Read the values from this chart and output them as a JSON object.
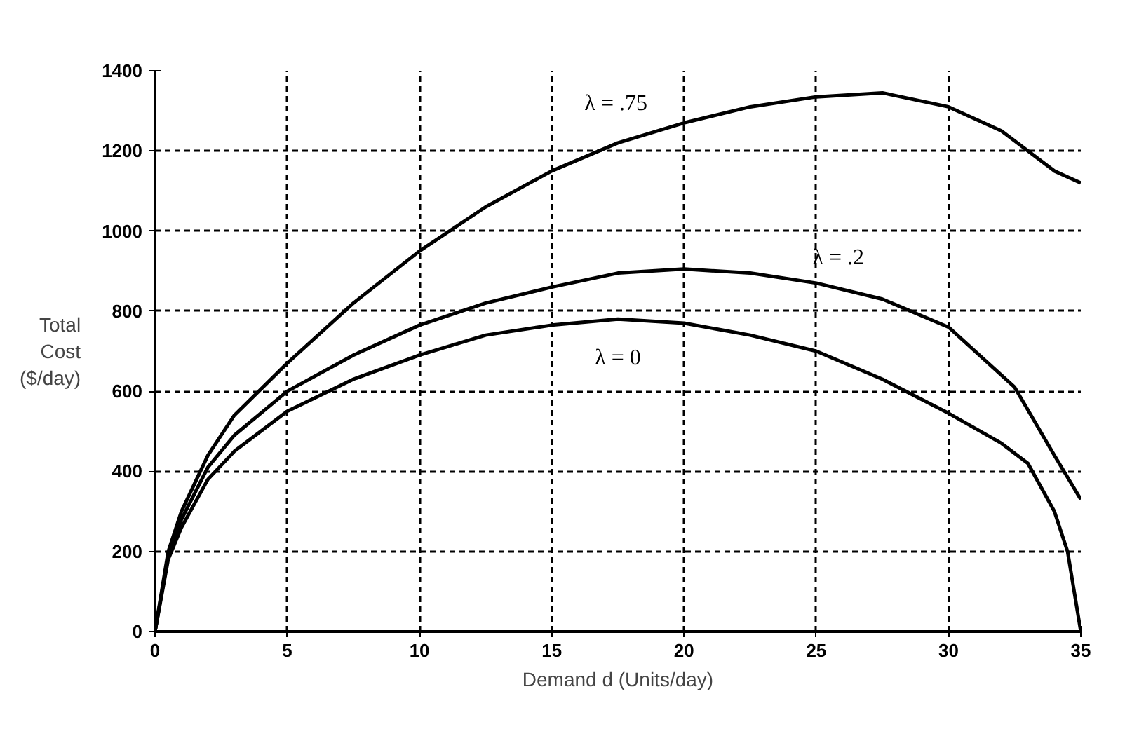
{
  "chart_data": {
    "type": "line",
    "xlabel": "Demand d (Units/day)",
    "ylabel": "Total Cost ($/day)",
    "xlim": [
      0,
      35
    ],
    "xticks": [
      0,
      5,
      10,
      15,
      20,
      25,
      30,
      35
    ],
    "ylim": [
      0,
      1400
    ],
    "yticks": [
      0,
      200,
      400,
      600,
      800,
      1000,
      1200,
      1400
    ],
    "grid": true,
    "line_style": "solid",
    "series": [
      {
        "name": "λ = 0",
        "color": "#000000",
        "x": [
          0,
          0.5,
          1,
          2,
          3,
          5,
          7.5,
          10,
          12.5,
          15,
          17.5,
          20,
          22.5,
          25,
          27.5,
          30,
          32,
          33,
          34,
          34.5,
          35
        ],
        "values": [
          0,
          180,
          260,
          380,
          450,
          550,
          630,
          690,
          740,
          765,
          780,
          770,
          740,
          700,
          630,
          545,
          470,
          420,
          300,
          200,
          0
        ]
      },
      {
        "name": "λ = .2",
        "color": "#000000",
        "x": [
          0,
          0.5,
          1,
          2,
          3,
          5,
          7.5,
          10,
          12.5,
          15,
          17.5,
          20,
          22.5,
          25,
          27.5,
          30,
          32.5,
          34,
          35
        ],
        "values": [
          0,
          190,
          280,
          410,
          490,
          600,
          690,
          765,
          820,
          860,
          895,
          905,
          895,
          870,
          830,
          760,
          610,
          440,
          330
        ]
      },
      {
        "name": "λ = .75",
        "color": "#000000",
        "x": [
          0,
          0.5,
          1,
          2,
          3,
          5,
          7.5,
          10,
          12.5,
          15,
          17.5,
          20,
          22.5,
          25,
          27.5,
          30,
          32,
          34,
          35
        ],
        "values": [
          0,
          200,
          300,
          440,
          540,
          670,
          820,
          950,
          1060,
          1150,
          1220,
          1270,
          1310,
          1335,
          1345,
          1310,
          1250,
          1150,
          1120
        ]
      }
    ]
  }
}
